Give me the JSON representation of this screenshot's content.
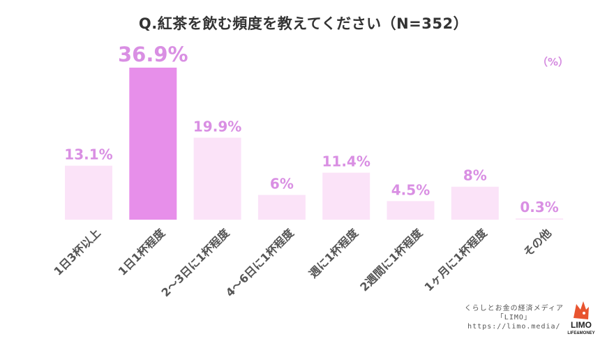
{
  "chart_data": {
    "type": "bar",
    "title": "Q.紅茶を飲む頻度を教えてください（N=352）",
    "unit_label": "（%）",
    "categories": [
      "1日3杯以上",
      "1日1杯程度",
      "2～3日に1杯程度",
      "4～6日に1杯程度",
      "週に1杯程度",
      "2週間に1杯程度",
      "1ヶ月に1杯程度",
      "その他"
    ],
    "values": [
      13.1,
      36.9,
      19.9,
      6,
      11.4,
      4.5,
      8,
      0.3
    ],
    "value_labels": [
      "13.1%",
      "36.9%",
      "19.9%",
      "6%",
      "11.4%",
      "4.5%",
      "8%",
      "0.3%"
    ],
    "highlight_index": 1,
    "ylim": [
      0,
      36.9
    ],
    "grid": false,
    "colors": {
      "bar": "#fbe3f8",
      "bar_highlight": "#e78fea",
      "value_label": "#d98fe3",
      "axis_label": "#555555"
    }
  },
  "footer": {
    "line1": "くらしとお金の経済メディア",
    "line2": "「LIMO」",
    "line3": "https://limo.media/"
  },
  "logo": {
    "name": "LIMO",
    "tagline": "LIFE & MONEY"
  }
}
